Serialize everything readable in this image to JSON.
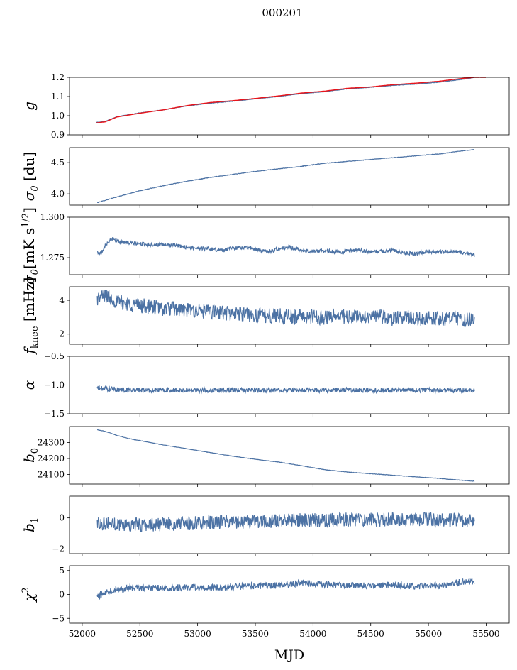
{
  "figure": {
    "title": "000201"
  },
  "chart_data": [
    {
      "type": "line",
      "name": "gain",
      "ylabel": "g",
      "ylim": [
        0.9,
        1.2
      ],
      "yticks": [
        0.9,
        1.0,
        1.1,
        1.2
      ],
      "ytick_labels": [
        "0.9",
        "1.0",
        "1.1",
        "1.2"
      ],
      "series": [
        {
          "color": "#4c72a4",
          "points": [
            [
              52120,
              0.965
            ],
            [
              52200,
              0.97
            ],
            [
              52300,
              0.995
            ],
            [
              52500,
              1.015
            ],
            [
              52700,
              1.03
            ],
            [
              52900,
              1.05
            ],
            [
              53100,
              1.065
            ],
            [
              53300,
              1.075
            ],
            [
              53500,
              1.088
            ],
            [
              53700,
              1.1
            ],
            [
              53900,
              1.115
            ],
            [
              54100,
              1.125
            ],
            [
              54300,
              1.14
            ],
            [
              54500,
              1.148
            ],
            [
              54700,
              1.158
            ],
            [
              54900,
              1.165
            ],
            [
              55100,
              1.175
            ],
            [
              55300,
              1.19
            ],
            [
              55400,
              1.2
            ]
          ]
        },
        {
          "color": "#e8141b",
          "points": [
            [
              52120,
              0.962
            ],
            [
              52200,
              0.968
            ],
            [
              52300,
              0.993
            ],
            [
              52500,
              1.013
            ],
            [
              52700,
              1.03
            ],
            [
              52900,
              1.052
            ],
            [
              53100,
              1.068
            ],
            [
              53300,
              1.078
            ],
            [
              53500,
              1.09
            ],
            [
              53700,
              1.103
            ],
            [
              53900,
              1.118
            ],
            [
              54100,
              1.128
            ],
            [
              54300,
              1.143
            ],
            [
              54500,
              1.15
            ],
            [
              54700,
              1.162
            ],
            [
              54900,
              1.17
            ],
            [
              55100,
              1.18
            ],
            [
              55300,
              1.195
            ],
            [
              55400,
              1.2
            ],
            [
              55500,
              1.2
            ]
          ]
        }
      ]
    },
    {
      "type": "line",
      "name": "sigma0-du",
      "ylabel": "σ0 [du]",
      "ylim": [
        3.82,
        4.74
      ],
      "yticks": [
        4.0,
        4.5
      ],
      "ytick_labels": [
        "4.0",
        "4.5"
      ],
      "series": [
        {
          "color": "#4c72a4",
          "points": [
            [
              52130,
              3.86
            ],
            [
              52300,
              3.95
            ],
            [
              52500,
              4.05
            ],
            [
              52700,
              4.13
            ],
            [
              52900,
              4.2
            ],
            [
              53100,
              4.26
            ],
            [
              53300,
              4.31
            ],
            [
              53500,
              4.36
            ],
            [
              53700,
              4.4
            ],
            [
              53900,
              4.44
            ],
            [
              54100,
              4.49
            ],
            [
              54300,
              4.52
            ],
            [
              54500,
              4.55
            ],
            [
              54700,
              4.58
            ],
            [
              54900,
              4.61
            ],
            [
              55100,
              4.64
            ],
            [
              55300,
              4.69
            ],
            [
              55400,
              4.71
            ]
          ]
        }
      ]
    },
    {
      "type": "line",
      "name": "sigma0-mk",
      "ylabel": "σ0[mK s^1/2]",
      "ylim": [
        1.2645,
        1.3
      ],
      "yticks": [
        1.275,
        1.3
      ],
      "ytick_labels": [
        "1.275",
        "1.300"
      ],
      "series": [
        {
          "color": "#4c72a4",
          "points": [
            [
              52130,
              1.2785
            ],
            [
              52160,
              1.2775
            ],
            [
              52200,
              1.283
            ],
            [
              52260,
              1.2865
            ],
            [
              52320,
              1.285
            ],
            [
              52400,
              1.284
            ],
            [
              52500,
              1.2835
            ],
            [
              52600,
              1.283
            ],
            [
              52700,
              1.283
            ],
            [
              52800,
              1.2825
            ],
            [
              52900,
              1.2815
            ],
            [
              53000,
              1.281
            ],
            [
              53100,
              1.2805
            ],
            [
              53200,
              1.2795
            ],
            [
              53300,
              1.281
            ],
            [
              53400,
              1.2815
            ],
            [
              53500,
              1.2805
            ],
            [
              53600,
              1.2785
            ],
            [
              53700,
              1.2805
            ],
            [
              53800,
              1.2815
            ],
            [
              53900,
              1.2795
            ],
            [
              54000,
              1.279
            ],
            [
              54100,
              1.2795
            ],
            [
              54200,
              1.2785
            ],
            [
              54300,
              1.279
            ],
            [
              54400,
              1.2795
            ],
            [
              54500,
              1.2785
            ],
            [
              54600,
              1.279
            ],
            [
              54700,
              1.2795
            ],
            [
              54800,
              1.278
            ],
            [
              54900,
              1.2775
            ],
            [
              55000,
              1.279
            ],
            [
              55100,
              1.2785
            ],
            [
              55200,
              1.279
            ],
            [
              55300,
              1.278
            ],
            [
              55400,
              1.2765
            ]
          ]
        }
      ]
    },
    {
      "type": "line",
      "name": "fknee",
      "ylabel": "fknee [mHz]",
      "ylim": [
        1.4,
        4.8
      ],
      "yticks": [
        2,
        4
      ],
      "ytick_labels": [
        "2",
        "4"
      ],
      "series": [
        {
          "color": "#4c72a4",
          "points": [
            [
              52130,
              4.1
            ],
            [
              52200,
              4.3
            ],
            [
              52300,
              3.9
            ],
            [
              52400,
              3.8
            ],
            [
              52500,
              3.7
            ],
            [
              52600,
              3.6
            ],
            [
              52700,
              3.5
            ],
            [
              52800,
              3.5
            ],
            [
              52900,
              3.4
            ],
            [
              53000,
              3.4
            ],
            [
              53100,
              3.3
            ],
            [
              53200,
              3.3
            ],
            [
              53300,
              3.2
            ],
            [
              53400,
              3.2
            ],
            [
              53500,
              3.1
            ],
            [
              53600,
              3.1
            ],
            [
              53700,
              3.1
            ],
            [
              53800,
              3.0
            ],
            [
              53900,
              3.1
            ],
            [
              54000,
              3.0
            ],
            [
              54100,
              3.0
            ],
            [
              54200,
              3.1
            ],
            [
              54300,
              3.0
            ],
            [
              54400,
              3.0
            ],
            [
              54500,
              3.1
            ],
            [
              54600,
              3.0
            ],
            [
              54700,
              2.9
            ],
            [
              54800,
              3.0
            ],
            [
              54900,
              2.9
            ],
            [
              55000,
              3.0
            ],
            [
              55100,
              2.9
            ],
            [
              55200,
              2.9
            ],
            [
              55300,
              2.9
            ],
            [
              55400,
              2.8
            ]
          ]
        }
      ]
    },
    {
      "type": "line",
      "name": "alpha",
      "ylabel": "α",
      "ylim": [
        -1.5,
        -0.5
      ],
      "yticks": [
        -1.5,
        -1.0,
        -0.5
      ],
      "ytick_labels": [
        "−1.5",
        "−1.0",
        "−0.5"
      ],
      "series": [
        {
          "color": "#4c72a4",
          "points": [
            [
              52130,
              -1.05
            ],
            [
              52300,
              -1.08
            ],
            [
              52500,
              -1.09
            ],
            [
              52700,
              -1.09
            ],
            [
              52900,
              -1.09
            ],
            [
              53100,
              -1.09
            ],
            [
              53300,
              -1.09
            ],
            [
              53500,
              -1.09
            ],
            [
              53700,
              -1.09
            ],
            [
              53900,
              -1.09
            ],
            [
              54100,
              -1.09
            ],
            [
              54300,
              -1.09
            ],
            [
              54500,
              -1.09
            ],
            [
              54700,
              -1.09
            ],
            [
              54900,
              -1.09
            ],
            [
              55100,
              -1.09
            ],
            [
              55300,
              -1.09
            ],
            [
              55400,
              -1.09
            ]
          ]
        }
      ]
    },
    {
      "type": "line",
      "name": "b0",
      "ylabel": "b0",
      "ylim": [
        24040,
        24400
      ],
      "yticks": [
        24100,
        24200,
        24300
      ],
      "ytick_labels": [
        "24100",
        "24200",
        "24300"
      ],
      "series": [
        {
          "color": "#4c72a4",
          "points": [
            [
              52130,
              24380
            ],
            [
              52200,
              24370
            ],
            [
              52300,
              24345
            ],
            [
              52400,
              24325
            ],
            [
              52500,
              24312
            ],
            [
              52700,
              24285
            ],
            [
              52900,
              24262
            ],
            [
              53100,
              24238
            ],
            [
              53300,
              24215
            ],
            [
              53500,
              24195
            ],
            [
              53700,
              24178
            ],
            [
              53900,
              24155
            ],
            [
              54100,
              24130
            ],
            [
              54300,
              24115
            ],
            [
              54500,
              24105
            ],
            [
              54700,
              24095
            ],
            [
              54900,
              24085
            ],
            [
              55100,
              24075
            ],
            [
              55300,
              24063
            ],
            [
              55400,
              24058
            ]
          ]
        }
      ]
    },
    {
      "type": "line",
      "name": "b1",
      "ylabel": "b1",
      "ylim": [
        -2.3,
        1.4
      ],
      "yticks": [
        -2,
        0
      ],
      "ytick_labels": [
        "−2",
        "0"
      ],
      "series": [
        {
          "color": "#4c72a4",
          "points": [
            [
              52130,
              -0.3
            ],
            [
              52300,
              -0.4
            ],
            [
              52500,
              -0.45
            ],
            [
              52700,
              -0.4
            ],
            [
              52900,
              -0.35
            ],
            [
              53100,
              -0.3
            ],
            [
              53300,
              -0.25
            ],
            [
              53500,
              -0.25
            ],
            [
              53700,
              -0.2
            ],
            [
              53900,
              -0.15
            ],
            [
              54100,
              -0.15
            ],
            [
              54300,
              -0.1
            ],
            [
              54500,
              -0.1
            ],
            [
              54700,
              -0.1
            ],
            [
              54900,
              -0.1
            ],
            [
              55100,
              -0.1
            ],
            [
              55300,
              -0.15
            ],
            [
              55400,
              -0.2
            ]
          ]
        }
      ]
    },
    {
      "type": "line",
      "name": "chi2",
      "ylabel": "χ2",
      "xlabel": "MJD",
      "ylim": [
        -6,
        6
      ],
      "yticks": [
        -5,
        0,
        5
      ],
      "ytick_labels": [
        "−5",
        "0",
        "5"
      ],
      "series": [
        {
          "color": "#4c72a4",
          "points": [
            [
              52130,
              -0.5
            ],
            [
              52200,
              0.5
            ],
            [
              52300,
              1.2
            ],
            [
              52500,
              1.4
            ],
            [
              52700,
              1.3
            ],
            [
              52900,
              1.5
            ],
            [
              53100,
              1.4
            ],
            [
              53300,
              1.6
            ],
            [
              53500,
              1.8
            ],
            [
              53700,
              1.9
            ],
            [
              53900,
              2.4
            ],
            [
              54100,
              2.1
            ],
            [
              54300,
              1.9
            ],
            [
              54500,
              1.8
            ],
            [
              54700,
              2.0
            ],
            [
              54900,
              1.7
            ],
            [
              55100,
              1.9
            ],
            [
              55300,
              2.6
            ],
            [
              55400,
              2.8
            ]
          ]
        }
      ]
    }
  ],
  "xaxis": {
    "label": "MJD",
    "xlim": [
      51890,
      55700
    ],
    "ticks": [
      52000,
      52500,
      53000,
      53500,
      54000,
      54500,
      55000,
      55500
    ],
    "tick_labels": [
      "52000",
      "52500",
      "53000",
      "53500",
      "54000",
      "54500",
      "55000",
      "55500"
    ]
  }
}
